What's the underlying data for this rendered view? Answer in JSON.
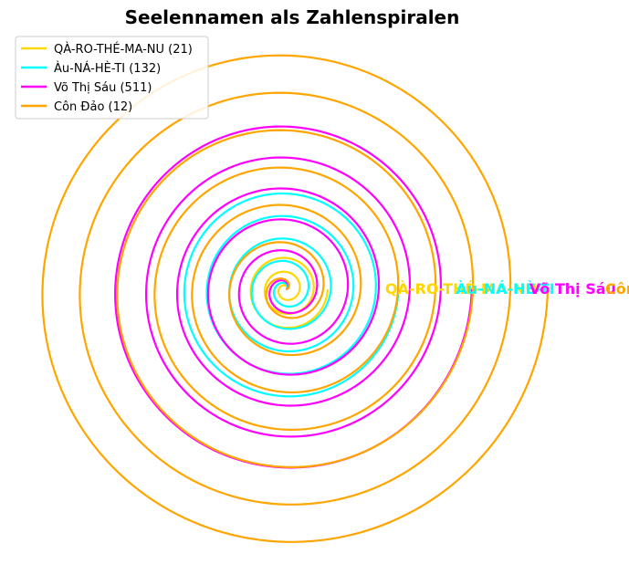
{
  "chart_data": {
    "type": "line",
    "title": "Seelennamen als Zahlenspiralen",
    "xlabel": "",
    "ylabel": "",
    "grid": false,
    "axes_visible": false,
    "legend_position": "top-left",
    "series": [
      {
        "name": "QÀ-RO-THÉ-MA-NU (21)",
        "end_label": "QÀ-RO-THÉ-MA-NU",
        "color": "#FFD700",
        "curve": "archimedean-spiral",
        "turns": 3,
        "max_radius": 0.16
      },
      {
        "name": "Àu-NÁ-HÈ-TI (132)",
        "end_label": "Àu-NÁ-HÈ-TI",
        "color": "#00FFFF",
        "curve": "archimedean-spiral",
        "turns": 5,
        "max_radius": 0.43
      },
      {
        "name": "Võ Thị Sáu (511)",
        "end_label": "Võ Thị Sáu",
        "color": "#FF00FF",
        "curve": "archimedean-spiral",
        "turns": 6,
        "max_radius": 0.71
      },
      {
        "name": "Côn Đảo (12)",
        "end_label": "Côn Đảo",
        "color": "#FFA500",
        "curve": "archimedean-spiral",
        "turns": 7,
        "max_radius": 1.0
      }
    ]
  }
}
